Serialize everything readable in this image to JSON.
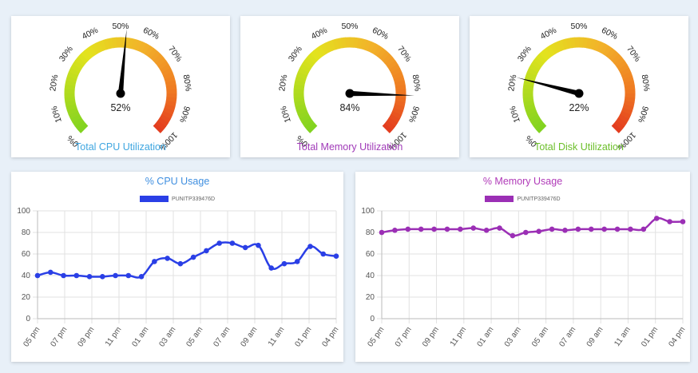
{
  "gauges": [
    {
      "title": "Total CPU Utilization",
      "value": 52,
      "value_label": "52%",
      "title_color": "#3fa6e0",
      "tick_labels": [
        "0%",
        "10%",
        "20%",
        "30%",
        "40%",
        "50%",
        "60%",
        "70%",
        "80%",
        "90%",
        "100%"
      ]
    },
    {
      "title": "Total Memory Utilization",
      "value": 84,
      "value_label": "84%",
      "title_color": "#a03ab8",
      "tick_labels": [
        "0%",
        "10%",
        "20%",
        "30%",
        "40%",
        "50%",
        "60%",
        "70%",
        "80%",
        "90%",
        "100%"
      ]
    },
    {
      "title": "Total Disk Utilization",
      "value": 22,
      "value_label": "22%",
      "title_color": "#6cbf2a",
      "tick_labels": [
        "0%",
        "10%",
        "20%",
        "30%",
        "40%",
        "50%",
        "60%",
        "70%",
        "80%",
        "90%",
        "100%"
      ]
    }
  ],
  "chart_data": [
    {
      "type": "line",
      "title": "% CPU Usage",
      "title_color": "#3f8fe0",
      "color": "#2a3fe6",
      "series": [
        {
          "name": "PUNITP339476D",
          "values": [
            40,
            43,
            40,
            40,
            39,
            39,
            40,
            40,
            39,
            53,
            56,
            51,
            57,
            63,
            70,
            70,
            66,
            68,
            47,
            51,
            53,
            67,
            60,
            58
          ]
        }
      ],
      "x_tick_labels": [
        "05 pm",
        "07 pm",
        "09 pm",
        "11 pm",
        "01 am",
        "03 am",
        "05 am",
        "07 am",
        "09 am",
        "11 am",
        "01 pm",
        "04 pm"
      ],
      "y_ticks": [
        "0",
        "20",
        "40",
        "60",
        "80",
        "100"
      ],
      "ylim": [
        0,
        100
      ],
      "grid": true,
      "legend": "top"
    },
    {
      "type": "line",
      "title": "% Memory Usage",
      "title_color": "#b03ab8",
      "color": "#9b2fb5",
      "series": [
        {
          "name": "PUNITP339476D",
          "values": [
            80,
            82,
            83,
            83,
            83,
            83,
            83,
            84,
            82,
            84,
            77,
            80,
            81,
            83,
            82,
            83,
            83,
            83,
            83,
            83,
            83,
            93,
            90,
            90
          ]
        }
      ],
      "x_tick_labels": [
        "05 pm",
        "07 pm",
        "09 pm",
        "11 pm",
        "01 am",
        "03 am",
        "05 am",
        "07 am",
        "09 am",
        "11 am",
        "01 pm",
        "04 pm"
      ],
      "y_ticks": [
        "0",
        "20",
        "40",
        "60",
        "80",
        "100"
      ],
      "ylim": [
        0,
        100
      ],
      "grid": true,
      "legend": "top"
    }
  ]
}
